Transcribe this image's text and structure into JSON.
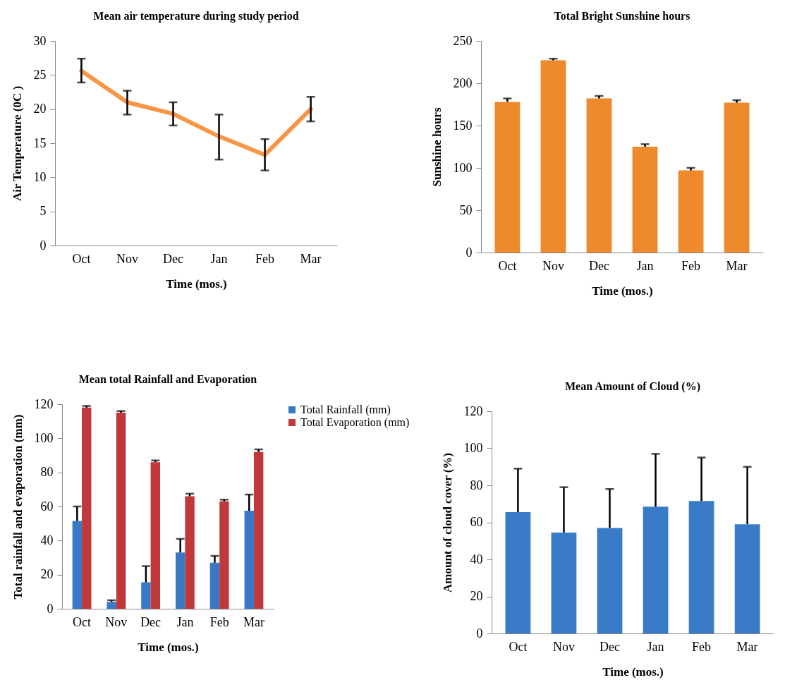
{
  "chart_data": [
    {
      "type": "line",
      "title": "Mean air temperature during study period",
      "xlabel": "Time (mos.)",
      "ylabel": "Air Temperature (0C )",
      "categories": [
        "Oct",
        "Nov",
        "Dec",
        "Jan",
        "Feb",
        "Mar"
      ],
      "values": [
        25.6,
        21.0,
        19.3,
        16.0,
        13.3,
        20.0
      ],
      "errors": [
        [
          23.9,
          27.4
        ],
        [
          19.2,
          22.7
        ],
        [
          17.6,
          21.0
        ],
        [
          12.6,
          19.2
        ],
        [
          11.0,
          15.6
        ],
        [
          18.2,
          21.8
        ]
      ],
      "color": "#f79646",
      "marker": "none",
      "line_style": "solid",
      "ylim": [
        0,
        30
      ],
      "yticks": [
        0,
        5,
        10,
        15,
        20,
        25,
        30
      ]
    },
    {
      "type": "bar",
      "title": "Total Bright Sunshine hours",
      "xlabel": "Time (mos.)",
      "ylabel": "Sunshine hours",
      "categories": [
        "Oct",
        "Nov",
        "Dec",
        "Jan",
        "Feb",
        "Mar"
      ],
      "values": [
        178,
        227,
        182,
        125,
        97,
        177
      ],
      "errors": [
        [
          178,
          182
        ],
        [
          227,
          229
        ],
        [
          182,
          185
        ],
        [
          125,
          128
        ],
        [
          97,
          100
        ],
        [
          177,
          180
        ]
      ],
      "color": "#ef8a2c",
      "ylim": [
        0,
        250
      ],
      "yticks": [
        0,
        50,
        100,
        150,
        200,
        250
      ]
    },
    {
      "type": "bar",
      "title": "Mean total Rainfall and Evaporation",
      "xlabel": "Time (mos.)",
      "ylabel": "Total rainfall and evaporation (mm)",
      "categories": [
        "Oct",
        "Nov",
        "Dec",
        "Jan",
        "Feb",
        "Mar"
      ],
      "legend": "right",
      "ylim": [
        0,
        120
      ],
      "yticks": [
        0,
        20,
        40,
        60,
        80,
        100,
        120
      ],
      "series": [
        {
          "name": "Total Rainfall (mm)",
          "color": "#3a78c4",
          "values": [
            51.5,
            4,
            15.5,
            33,
            27,
            57.5
          ],
          "errors": [
            [
              51.5,
              60
            ],
            [
              4,
              5
            ],
            [
              15.5,
              25
            ],
            [
              33,
              41
            ],
            [
              27,
              31
            ],
            [
              57.5,
              67
            ]
          ]
        },
        {
          "name": "Total Evaporation (mm)",
          "color": "#c0393a",
          "values": [
            118,
            115,
            86,
            66,
            63,
            92
          ],
          "errors": [
            [
              118,
              119
            ],
            [
              115,
              116
            ],
            [
              86,
              87
            ],
            [
              66,
              67.5
            ],
            [
              63,
              64
            ],
            [
              92,
              93.5
            ]
          ]
        }
      ]
    },
    {
      "type": "bar",
      "title": "Mean Amount of Cloud (%)",
      "xlabel": "Time (mos.)",
      "ylabel": "Amount of cloud cover (%)",
      "categories": [
        "Oct",
        "Nov",
        "Dec",
        "Jan",
        "Feb",
        "Mar"
      ],
      "values": [
        65.5,
        54.5,
        57,
        68.5,
        71.5,
        59
      ],
      "errors": [
        [
          65.5,
          89
        ],
        [
          54.5,
          79
        ],
        [
          57,
          78
        ],
        [
          68.5,
          97
        ],
        [
          71.5,
          95
        ],
        [
          59,
          90
        ]
      ],
      "color": "#3a7bc8",
      "ylim": [
        0,
        120
      ],
      "yticks": [
        0,
        20,
        40,
        60,
        80,
        100,
        120
      ]
    }
  ]
}
